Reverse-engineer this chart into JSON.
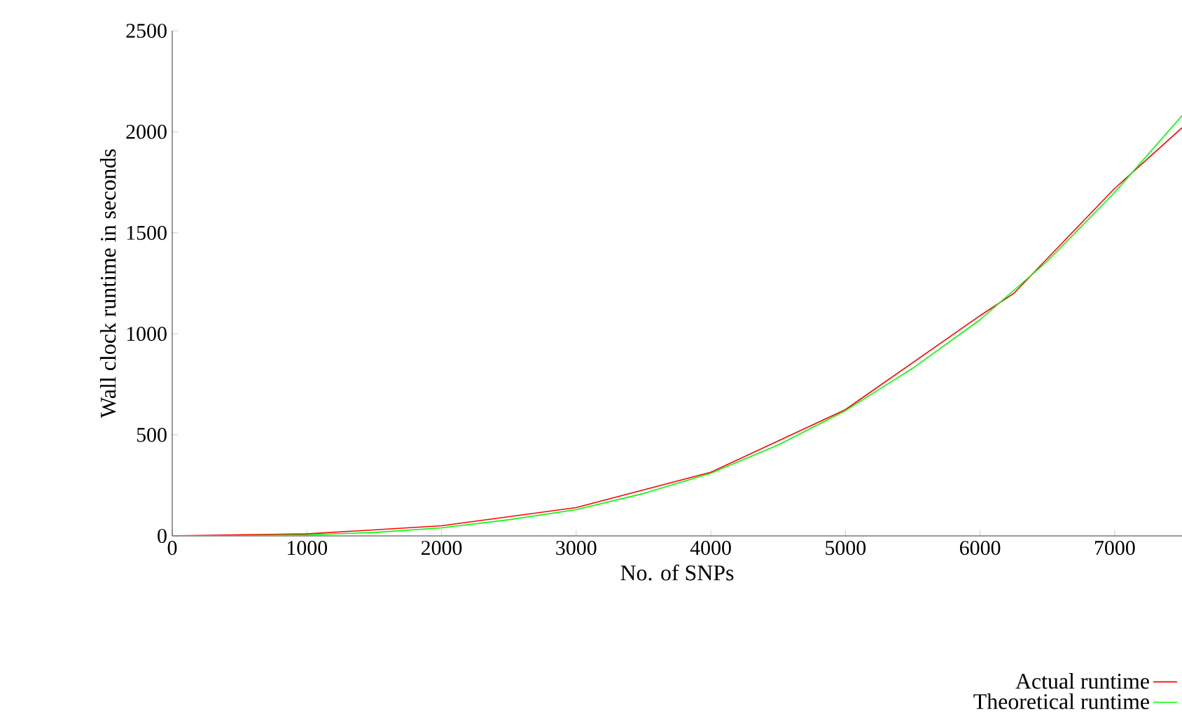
{
  "chart_data": {
    "type": "line",
    "xlabel": "No. of SNPs",
    "ylabel": "Wall clock runtime in seconds",
    "x": [
      0,
      1000,
      2000,
      3000,
      4000,
      5000,
      6000,
      6250,
      7000,
      7500
    ],
    "series": [
      {
        "name": "Actual runtime",
        "color": "#ff0000",
        "values": [
          0,
          10,
          50,
          140,
          315,
          625,
          1090,
          1200,
          1720,
          2020
        ]
      },
      {
        "name": "Theoretical runtime",
        "color": "#00ff00",
        "x": [
          0,
          500,
          1000,
          1500,
          2000,
          2500,
          3000,
          3500,
          4000,
          4500,
          5000,
          5500,
          6000,
          6500,
          7000,
          7500
        ],
        "values": [
          0,
          1,
          5,
          17,
          40,
          80,
          130,
          210,
          310,
          450,
          620,
          830,
          1070,
          1360,
          1700,
          2080
        ]
      }
    ],
    "xlim": [
      0,
      7500
    ],
    "ylim": [
      0,
      2500
    ],
    "xticks": [
      0,
      1000,
      2000,
      3000,
      4000,
      5000,
      6000,
      7000
    ],
    "yticks": [
      0,
      500,
      1000,
      1500,
      2000,
      2500
    ],
    "legend": "bottom right",
    "grid": false
  }
}
